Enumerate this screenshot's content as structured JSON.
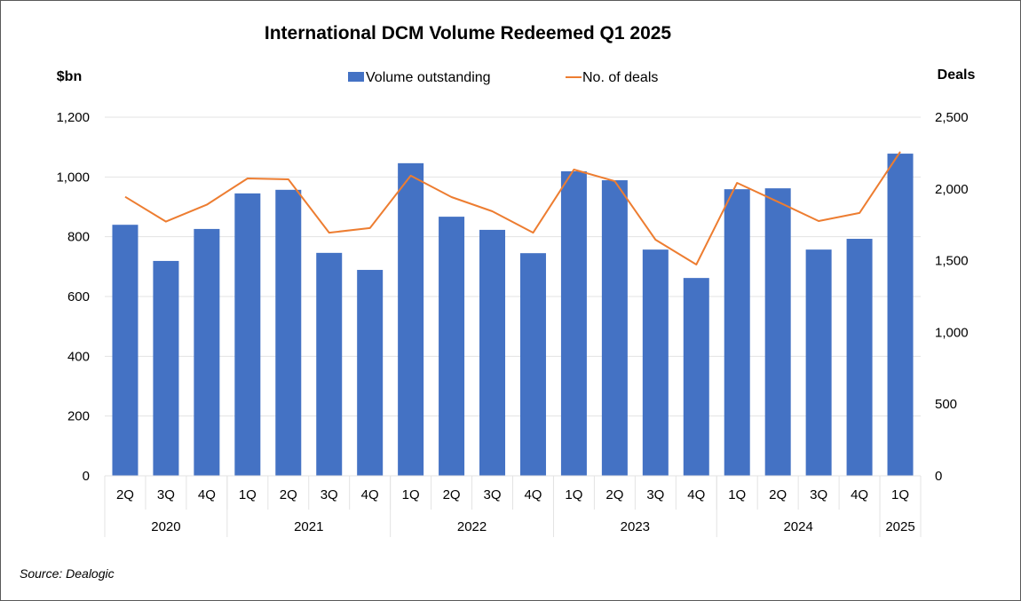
{
  "chart_data": {
    "type": "bar",
    "title": "International DCM Volume Redeemed Q1 2025",
    "ylabel_left": "$bn",
    "ylabel_right": "Deals",
    "ylim_left": [
      0,
      1200
    ],
    "ylim_right": [
      0,
      2500
    ],
    "yticks_left": [
      "0",
      "200",
      "400",
      "600",
      "800",
      "1,000",
      "1,200"
    ],
    "yticks_left_values": [
      0,
      200,
      400,
      600,
      800,
      1000,
      1200
    ],
    "yticks_right": [
      "0",
      "500",
      "1,000",
      "1,500",
      "2,000",
      "2,500"
    ],
    "yticks_right_values": [
      0,
      500,
      1000,
      1500,
      2000,
      2500
    ],
    "grid": true,
    "legend_position": "top-center",
    "categories": [
      "2Q",
      "3Q",
      "4Q",
      "1Q",
      "2Q",
      "3Q",
      "4Q",
      "1Q",
      "2Q",
      "3Q",
      "4Q",
      "1Q",
      "2Q",
      "3Q",
      "4Q",
      "1Q",
      "2Q",
      "3Q",
      "4Q",
      "1Q"
    ],
    "year_groups": [
      {
        "label": "2020",
        "count": 3
      },
      {
        "label": "2021",
        "count": 4
      },
      {
        "label": "2022",
        "count": 4
      },
      {
        "label": "2023",
        "count": 4
      },
      {
        "label": "2024",
        "count": 4
      },
      {
        "label": "2025",
        "count": 1
      }
    ],
    "series": [
      {
        "name": "Volume outstanding",
        "type": "bar",
        "axis": "left",
        "color": "#4472C4",
        "values": [
          840,
          719,
          826,
          945,
          957,
          746,
          689,
          1046,
          867,
          823,
          745,
          1019,
          989,
          757,
          662,
          959,
          962,
          757,
          793,
          1078
        ]
      },
      {
        "name": "No. of deals",
        "type": "line",
        "axis": "right",
        "color": "#ED7D31",
        "values": [
          1945,
          1772,
          1890,
          2073,
          2067,
          1695,
          1727,
          2092,
          1943,
          1844,
          1695,
          2135,
          2054,
          1646,
          1473,
          2042,
          1910,
          1776,
          1832,
          2259
        ]
      }
    ],
    "source": "Source: Dealogic"
  }
}
